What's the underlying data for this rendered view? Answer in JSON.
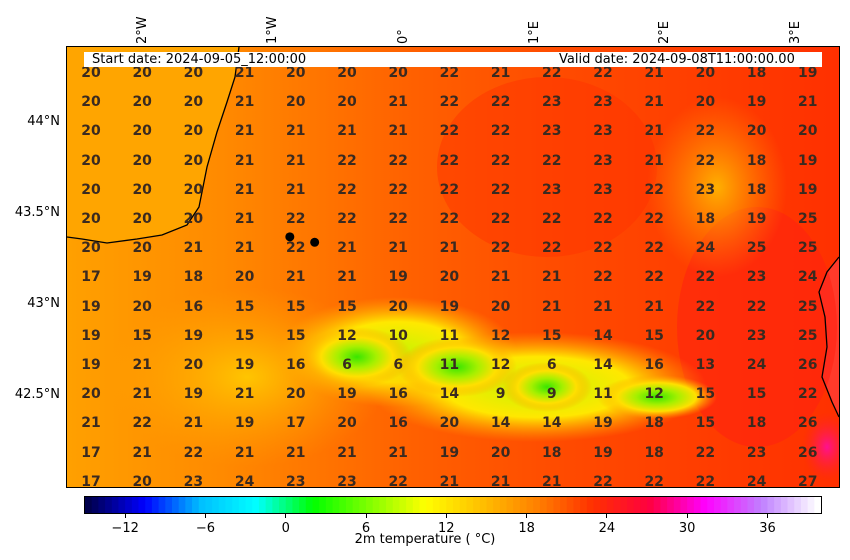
{
  "header": {
    "start_date": "Start date: 2024-09-05_12:00:00",
    "valid_date": "Valid date: 2024-09-08T11:00:00.00"
  },
  "axes": {
    "lon_labels": [
      "2°W",
      "1°W",
      "0°",
      "1°E",
      "2°E",
      "3°E"
    ],
    "lat_labels": [
      "44°N",
      "43.5°N",
      "43°N",
      "42.5°N"
    ]
  },
  "colorbar": {
    "title": "2m temperature ($^\\circ$C)",
    "title_display": "2m temperature ( °C)",
    "ticks": [
      "−12",
      "−6",
      "0",
      "6",
      "12",
      "18",
      "24",
      "30",
      "36"
    ],
    "range": [
      -15,
      40
    ]
  },
  "markers": [
    {
      "name": "city-point-1",
      "lon": -0.82,
      "lat": 43.38
    },
    {
      "name": "city-point-2",
      "lon": -0.63,
      "lat": 43.35
    }
  ],
  "grid": {
    "rows": [
      [
        20,
        20,
        20,
        21,
        20,
        20,
        20,
        22,
        21,
        22,
        22,
        21,
        20,
        18,
        19
      ],
      [
        20,
        20,
        20,
        21,
        20,
        20,
        21,
        22,
        22,
        23,
        23,
        21,
        20,
        19,
        21
      ],
      [
        20,
        20,
        20,
        21,
        21,
        21,
        21,
        22,
        22,
        23,
        23,
        21,
        22,
        20,
        20
      ],
      [
        20,
        20,
        20,
        21,
        21,
        22,
        22,
        22,
        22,
        22,
        23,
        21,
        22,
        18,
        19
      ],
      [
        20,
        20,
        20,
        21,
        21,
        22,
        22,
        22,
        22,
        23,
        23,
        22,
        23,
        18,
        19
      ],
      [
        20,
        20,
        20,
        21,
        22,
        22,
        22,
        22,
        22,
        22,
        22,
        22,
        18,
        19,
        25
      ],
      [
        20,
        20,
        21,
        21,
        22,
        21,
        21,
        21,
        22,
        22,
        22,
        22,
        24,
        25,
        25
      ],
      [
        17,
        19,
        18,
        20,
        21,
        21,
        19,
        20,
        21,
        21,
        22,
        22,
        22,
        23,
        24
      ],
      [
        19,
        20,
        16,
        15,
        15,
        15,
        20,
        19,
        20,
        21,
        21,
        21,
        22,
        22,
        25
      ],
      [
        19,
        15,
        19,
        15,
        15,
        12,
        10,
        11,
        12,
        15,
        14,
        15,
        20,
        23,
        25
      ],
      [
        19,
        21,
        20,
        19,
        16,
        6,
        6,
        11,
        12,
        6,
        14,
        16,
        13,
        24,
        26
      ],
      [
        20,
        21,
        19,
        21,
        20,
        19,
        16,
        14,
        9,
        9,
        11,
        12,
        15,
        15,
        22
      ],
      [
        21,
        22,
        21,
        19,
        17,
        20,
        16,
        20,
        14,
        14,
        19,
        18,
        15,
        18,
        26
      ],
      [
        17,
        21,
        22,
        21,
        21,
        21,
        21,
        19,
        20,
        18,
        19,
        18,
        22,
        23,
        26
      ],
      [
        17,
        20,
        23,
        24,
        23,
        23,
        22,
        21,
        21,
        21,
        22,
        22,
        22,
        24,
        27
      ]
    ]
  },
  "colors": {
    "coast": "#000000",
    "label_text": "#3a2a20",
    "cmap": [
      "#00004c",
      "#0000ff",
      "#00bfff",
      "#00ffff",
      "#00ff00",
      "#80ff00",
      "#ffff00",
      "#ffc000",
      "#ff8000",
      "#ff3000",
      "#ff0040",
      "#ff00ff",
      "#c080ff",
      "#ffffff"
    ]
  }
}
